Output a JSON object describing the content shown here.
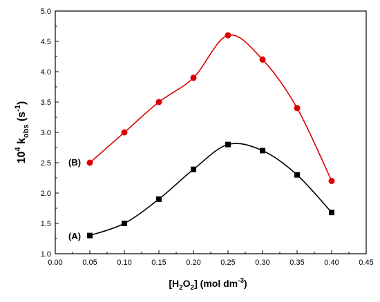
{
  "chart_data": {
    "type": "line",
    "xlabel": {
      "pre": "[H",
      "sub1": "2",
      "mid": "O",
      "sub2": "2",
      "post": "] (mol dm",
      "sup": "-3",
      "end": ")"
    },
    "ylabel": {
      "pre": "10",
      "sup": "4",
      "mid": " k",
      "sub": "obs",
      "post": " (s",
      "sup2": "-1",
      "end": ")"
    },
    "xlim": [
      0.0,
      0.45
    ],
    "ylim": [
      1.0,
      5.0
    ],
    "x_ticks": [
      "0.00",
      "0.05",
      "0.10",
      "0.15",
      "0.20",
      "0.25",
      "0.30",
      "0.35",
      "0.40",
      "0.45"
    ],
    "y_ticks": [
      "1.0",
      "1.5",
      "2.0",
      "2.5",
      "3.0",
      "3.5",
      "4.0",
      "4.5",
      "5.0"
    ],
    "grid": false,
    "series": [
      {
        "name": "(A)",
        "color": "#000000",
        "marker": "square",
        "x": [
          0.05,
          0.1,
          0.15,
          0.2,
          0.25,
          0.3,
          0.35,
          0.4
        ],
        "values": [
          1.3,
          1.5,
          1.9,
          2.39,
          2.8,
          2.7,
          2.3,
          1.68
        ]
      },
      {
        "name": "(B)",
        "color": "#dd0000",
        "marker": "circle",
        "x": [
          0.05,
          0.1,
          0.15,
          0.2,
          0.25,
          0.3,
          0.35,
          0.4
        ],
        "values": [
          2.5,
          3.0,
          3.5,
          3.9,
          4.6,
          4.2,
          3.4,
          2.2
        ]
      }
    ]
  }
}
